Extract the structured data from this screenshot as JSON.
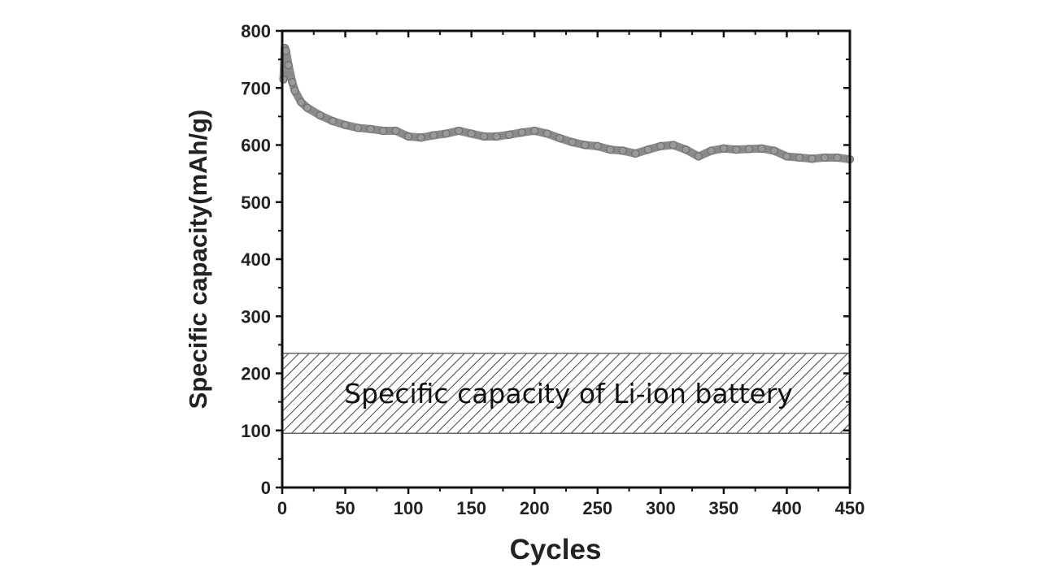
{
  "chart_data": {
    "type": "scatter",
    "title": "",
    "xlabel": "Cycles",
    "ylabel": "Specific capacity(mAh/g)",
    "xlim": [
      0,
      450
    ],
    "ylim": [
      0,
      800
    ],
    "xticks": [
      0,
      50,
      100,
      150,
      200,
      250,
      300,
      350,
      400,
      450
    ],
    "yticks": [
      0,
      100,
      200,
      300,
      400,
      500,
      600,
      700,
      800
    ],
    "grid": false,
    "marker_color": "#8a8a8a",
    "series": [
      {
        "name": "Specific capacity",
        "x": [
          1,
          2,
          3,
          5,
          8,
          10,
          15,
          20,
          30,
          40,
          50,
          60,
          70,
          80,
          90,
          100,
          110,
          120,
          130,
          140,
          150,
          160,
          170,
          180,
          190,
          200,
          210,
          220,
          230,
          240,
          250,
          260,
          270,
          280,
          290,
          300,
          310,
          320,
          330,
          340,
          350,
          360,
          370,
          380,
          390,
          400,
          410,
          420,
          430,
          440,
          450
        ],
        "y": [
          715,
          770,
          765,
          740,
          710,
          695,
          675,
          665,
          652,
          642,
          635,
          630,
          628,
          625,
          625,
          615,
          613,
          617,
          620,
          625,
          620,
          615,
          615,
          618,
          622,
          625,
          620,
          612,
          605,
          600,
          598,
          592,
          590,
          585,
          592,
          598,
          600,
          592,
          580,
          590,
          594,
          592,
          593,
          594,
          590,
          580,
          578,
          576,
          578,
          578,
          575
        ]
      }
    ],
    "annotations": [
      {
        "text": "Specific capacity of Li-ion battery",
        "style": "hatched band",
        "y_range": [
          95,
          235
        ],
        "x_range": [
          0,
          450
        ]
      }
    ]
  }
}
